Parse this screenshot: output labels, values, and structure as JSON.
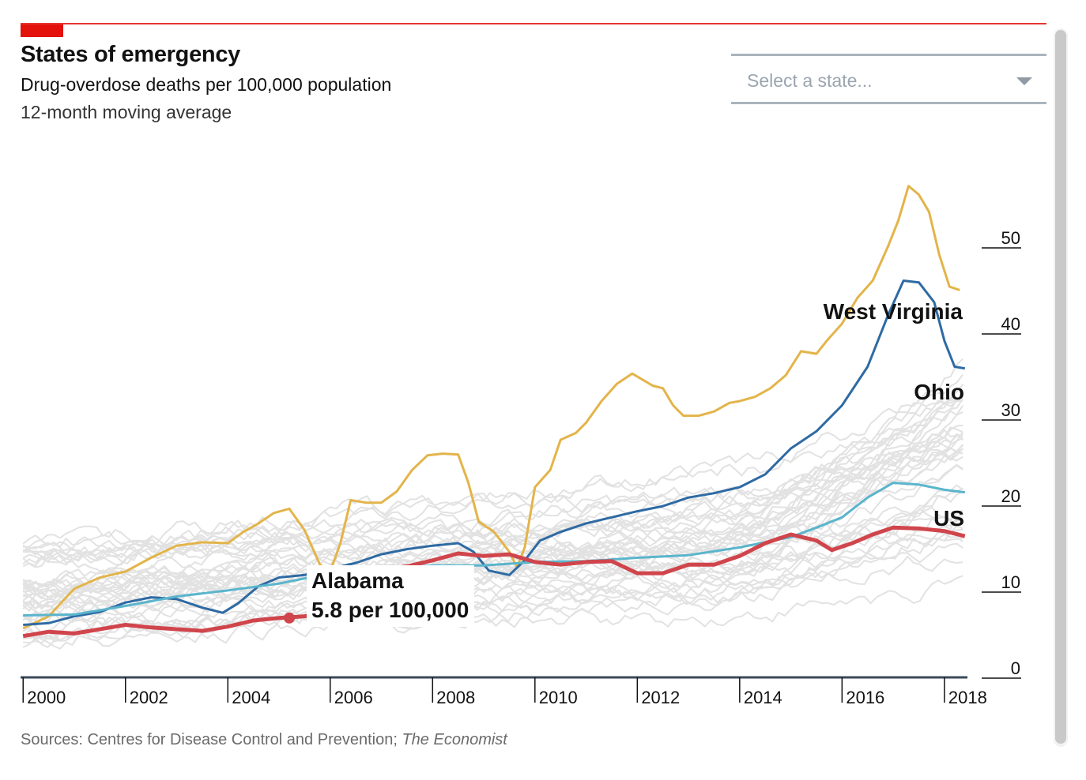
{
  "header": {
    "title": "States of emergency",
    "subtitle": "Drug-overdose deaths per 100,000 population",
    "subtitle2": "12-month moving average"
  },
  "selector": {
    "placeholder": "Select a state..."
  },
  "footer": {
    "source_prefix": "Sources: Centres for Disease Control and Prevention; ",
    "source_italic": "The Economist"
  },
  "tooltip": {
    "state": "Alabama",
    "value_text": "5.8 per 100,000",
    "x": 2005.2,
    "y": 5.8
  },
  "colors": {
    "wv": "#e3b44a",
    "ohio": "#2e6aa3",
    "us": "#5ab5cc",
    "alabama": "#d0454c",
    "background_states": "#e2e2e2",
    "accent": "#e3120b"
  },
  "chart_data": {
    "type": "line",
    "title": "States of emergency",
    "xlim": [
      1999.95,
      2018.45
    ],
    "ylim": [
      0,
      55
    ],
    "x_ticks": [
      2000,
      2002,
      2004,
      2006,
      2008,
      2010,
      2012,
      2014,
      2016,
      2018
    ],
    "x_tick_labels": [
      "2000",
      "2002",
      "2004",
      "2006",
      "2008",
      "2010",
      "2012",
      "2014",
      "2016",
      "2018"
    ],
    "y_ticks": [
      0,
      10,
      20,
      30,
      40,
      50
    ],
    "y_tick_labels": [
      "0",
      "10",
      "20",
      "30",
      "40",
      "50"
    ],
    "grid": false,
    "series": [
      {
        "name": "West Virginia",
        "color": "#e3b44a",
        "width": 3,
        "points": [
          [
            2000,
            4.6
          ],
          [
            2000.5,
            6.0
          ],
          [
            2001,
            9.2
          ],
          [
            2001.5,
            10.5
          ],
          [
            2002,
            11.2
          ],
          [
            2002.5,
            12.8
          ],
          [
            2003,
            14.2
          ],
          [
            2003.5,
            14.6
          ],
          [
            2004,
            14.5
          ],
          [
            2004.3,
            15.8
          ],
          [
            2004.6,
            16.8
          ],
          [
            2004.9,
            18.0
          ],
          [
            2005.2,
            18.5
          ],
          [
            2005.5,
            16.0
          ],
          [
            2005.8,
            12.0
          ],
          [
            2006,
            11.2
          ],
          [
            2006.2,
            14.5
          ],
          [
            2006.4,
            19.5
          ],
          [
            2006.7,
            19.2
          ],
          [
            2007,
            19.2
          ],
          [
            2007.3,
            20.5
          ],
          [
            2007.6,
            23.0
          ],
          [
            2007.9,
            24.7
          ],
          [
            2008.2,
            24.9
          ],
          [
            2008.5,
            24.8
          ],
          [
            2008.7,
            21.5
          ],
          [
            2008.9,
            17.0
          ],
          [
            2009.2,
            15.8
          ],
          [
            2009.5,
            13.5
          ],
          [
            2009.65,
            11.7
          ],
          [
            2009.8,
            14.0
          ],
          [
            2010,
            21.0
          ],
          [
            2010.3,
            23.0
          ],
          [
            2010.5,
            26.5
          ],
          [
            2010.8,
            27.3
          ],
          [
            2011,
            28.5
          ],
          [
            2011.3,
            31.0
          ],
          [
            2011.6,
            33.0
          ],
          [
            2011.9,
            34.2
          ],
          [
            2012.1,
            33.5
          ],
          [
            2012.3,
            32.8
          ],
          [
            2012.5,
            32.5
          ],
          [
            2012.7,
            30.5
          ],
          [
            2012.9,
            29.3
          ],
          [
            2013.2,
            29.3
          ],
          [
            2013.5,
            29.8
          ],
          [
            2013.8,
            30.8
          ],
          [
            2014,
            31.0
          ],
          [
            2014.3,
            31.5
          ],
          [
            2014.6,
            32.5
          ],
          [
            2014.9,
            34.0
          ],
          [
            2015.2,
            36.8
          ],
          [
            2015.5,
            36.5
          ],
          [
            2015.7,
            38.0
          ],
          [
            2016,
            40.0
          ],
          [
            2016.3,
            43.0
          ],
          [
            2016.6,
            45.0
          ],
          [
            2016.9,
            49.0
          ],
          [
            2017.1,
            52.0
          ],
          [
            2017.3,
            56.0
          ],
          [
            2017.5,
            55.0
          ],
          [
            2017.7,
            53.0
          ],
          [
            2017.9,
            48.0
          ],
          [
            2018.1,
            44.3
          ],
          [
            2018.3,
            43.9
          ]
        ]
      },
      {
        "name": "Ohio",
        "color": "#2e6aa3",
        "width": 3,
        "points": [
          [
            2000,
            5.0
          ],
          [
            2000.5,
            5.2
          ],
          [
            2001,
            6.0
          ],
          [
            2001.5,
            6.5
          ],
          [
            2002,
            7.6
          ],
          [
            2002.5,
            8.2
          ],
          [
            2003,
            8.0
          ],
          [
            2003.5,
            7.0
          ],
          [
            2003.9,
            6.4
          ],
          [
            2004.2,
            7.5
          ],
          [
            2004.6,
            9.5
          ],
          [
            2005,
            10.5
          ],
          [
            2005.5,
            10.8
          ],
          [
            2006,
            11.5
          ],
          [
            2006.5,
            12.2
          ],
          [
            2007,
            13.2
          ],
          [
            2007.5,
            13.8
          ],
          [
            2008,
            14.2
          ],
          [
            2008.5,
            14.5
          ],
          [
            2008.8,
            13.5
          ],
          [
            2009.1,
            11.3
          ],
          [
            2009.5,
            10.8
          ],
          [
            2009.8,
            12.5
          ],
          [
            2010.1,
            14.8
          ],
          [
            2010.5,
            15.8
          ],
          [
            2011,
            16.8
          ],
          [
            2011.5,
            17.5
          ],
          [
            2012,
            18.2
          ],
          [
            2012.5,
            18.8
          ],
          [
            2013,
            19.8
          ],
          [
            2013.5,
            20.3
          ],
          [
            2014,
            21.0
          ],
          [
            2014.5,
            22.5
          ],
          [
            2015,
            25.5
          ],
          [
            2015.5,
            27.5
          ],
          [
            2016,
            30.5
          ],
          [
            2016.5,
            35.0
          ],
          [
            2016.9,
            41.0
          ],
          [
            2017.2,
            45.0
          ],
          [
            2017.5,
            44.8
          ],
          [
            2017.8,
            42.5
          ],
          [
            2018.0,
            38.0
          ],
          [
            2018.2,
            35.0
          ],
          [
            2018.4,
            34.8
          ]
        ]
      },
      {
        "name": "US",
        "color": "#5ab5cc",
        "width": 3,
        "points": [
          [
            2000,
            6.1
          ],
          [
            2001,
            6.2
          ],
          [
            2002,
            7.2
          ],
          [
            2003,
            8.3
          ],
          [
            2004,
            9.0
          ],
          [
            2005,
            9.8
          ],
          [
            2006,
            11.0
          ],
          [
            2007,
            11.5
          ],
          [
            2008,
            11.9
          ],
          [
            2009,
            11.9
          ],
          [
            2010,
            12.3
          ],
          [
            2011,
            12.4
          ],
          [
            2012,
            12.8
          ],
          [
            2013,
            13.1
          ],
          [
            2014,
            14.0
          ],
          [
            2015,
            15.2
          ],
          [
            2015.5,
            16.3
          ],
          [
            2016,
            17.5
          ],
          [
            2016.5,
            19.8
          ],
          [
            2017,
            21.5
          ],
          [
            2017.5,
            21.3
          ],
          [
            2018,
            20.7
          ],
          [
            2018.4,
            20.4
          ]
        ]
      },
      {
        "name": "Alabama",
        "color": "#d0454c",
        "width": 5,
        "points": [
          [
            2000,
            3.7
          ],
          [
            2000.5,
            4.2
          ],
          [
            2001,
            4.0
          ],
          [
            2001.5,
            4.5
          ],
          [
            2002,
            5.0
          ],
          [
            2002.5,
            4.7
          ],
          [
            2003,
            4.5
          ],
          [
            2003.5,
            4.3
          ],
          [
            2004,
            4.8
          ],
          [
            2004.5,
            5.5
          ],
          [
            2005,
            5.8
          ],
          [
            2005.5,
            6.0
          ],
          [
            2006,
            6.5
          ],
          [
            2006.5,
            9.5
          ],
          [
            2007,
            11.5
          ],
          [
            2007.5,
            11.8
          ],
          [
            2008,
            12.5
          ],
          [
            2008.5,
            13.3
          ],
          [
            2009,
            13.0
          ],
          [
            2009.5,
            13.2
          ],
          [
            2010,
            12.3
          ],
          [
            2010.5,
            12.0
          ],
          [
            2011,
            12.3
          ],
          [
            2011.5,
            12.4
          ],
          [
            2012,
            11.0
          ],
          [
            2012.5,
            11.0
          ],
          [
            2013,
            12.0
          ],
          [
            2013.5,
            12.0
          ],
          [
            2014,
            13.0
          ],
          [
            2014.5,
            14.5
          ],
          [
            2015,
            15.5
          ],
          [
            2015.5,
            14.8
          ],
          [
            2015.8,
            13.7
          ],
          [
            2016.2,
            14.5
          ],
          [
            2016.6,
            15.5
          ],
          [
            2017,
            16.3
          ],
          [
            2017.5,
            16.2
          ],
          [
            2018,
            15.9
          ],
          [
            2018.4,
            15.3
          ]
        ]
      }
    ]
  }
}
